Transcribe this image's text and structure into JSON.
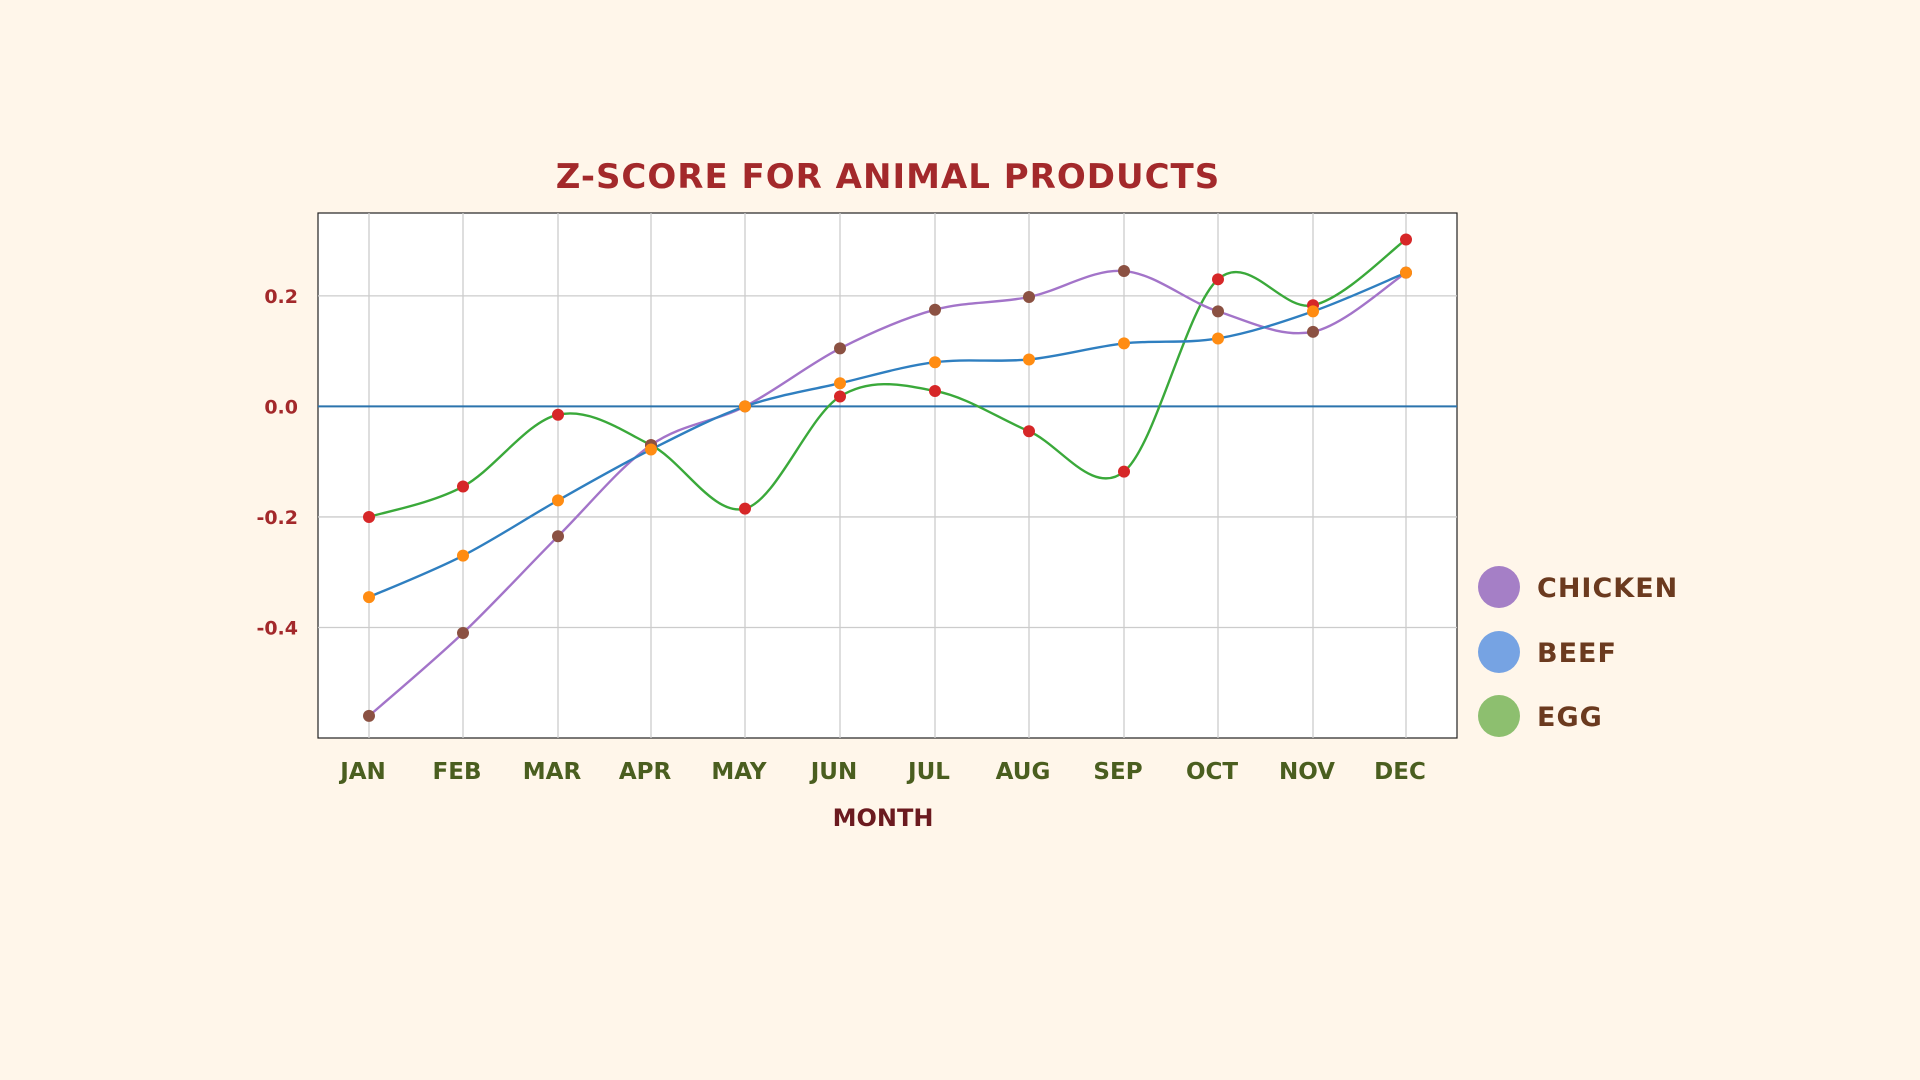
{
  "chart_data": {
    "type": "line",
    "title": "Z-SCORE FOR ANIMAL PRODUCTS",
    "xlabel": "MONTH",
    "ylabel": "",
    "categories": [
      "JAN",
      "FEB",
      "MAR",
      "APR",
      "MAY",
      "JUN",
      "JUL",
      "AUG",
      "SEP",
      "OCT",
      "NOV",
      "DEC"
    ],
    "ylim": [
      -0.6,
      0.35
    ],
    "yticks": [
      0.2,
      0.0,
      -0.2,
      -0.4
    ],
    "ytick_labels": [
      "0.2",
      "0.0",
      "-0.2",
      "-0.4"
    ],
    "grid": true,
    "zero_line": true,
    "legend_position": "right",
    "series": [
      {
        "name": "CHICKEN",
        "line_color": "#a374c9",
        "marker_color": "#8b5142",
        "legend_color": "#a57fc6",
        "values": [
          -0.56,
          -0.41,
          -0.235,
          -0.07,
          0.0,
          0.105,
          0.175,
          0.198,
          0.245,
          0.172,
          0.135,
          0.242
        ]
      },
      {
        "name": "BEEF",
        "line_color": "#2f7fc0",
        "marker_color": "#ff8c12",
        "legend_color": "#76a3e3",
        "values": [
          -0.345,
          -0.27,
          -0.17,
          -0.078,
          0.0,
          0.042,
          0.08,
          0.085,
          0.114,
          0.123,
          0.172,
          0.242
        ]
      },
      {
        "name": "EGG",
        "line_color": "#3aa93a",
        "marker_color": "#d62728",
        "legend_color": "#8dbf6f",
        "values": [
          -0.2,
          -0.145,
          -0.015,
          -0.07,
          -0.185,
          0.018,
          0.028,
          -0.045,
          -0.118,
          0.23,
          0.183,
          0.302
        ]
      }
    ]
  }
}
